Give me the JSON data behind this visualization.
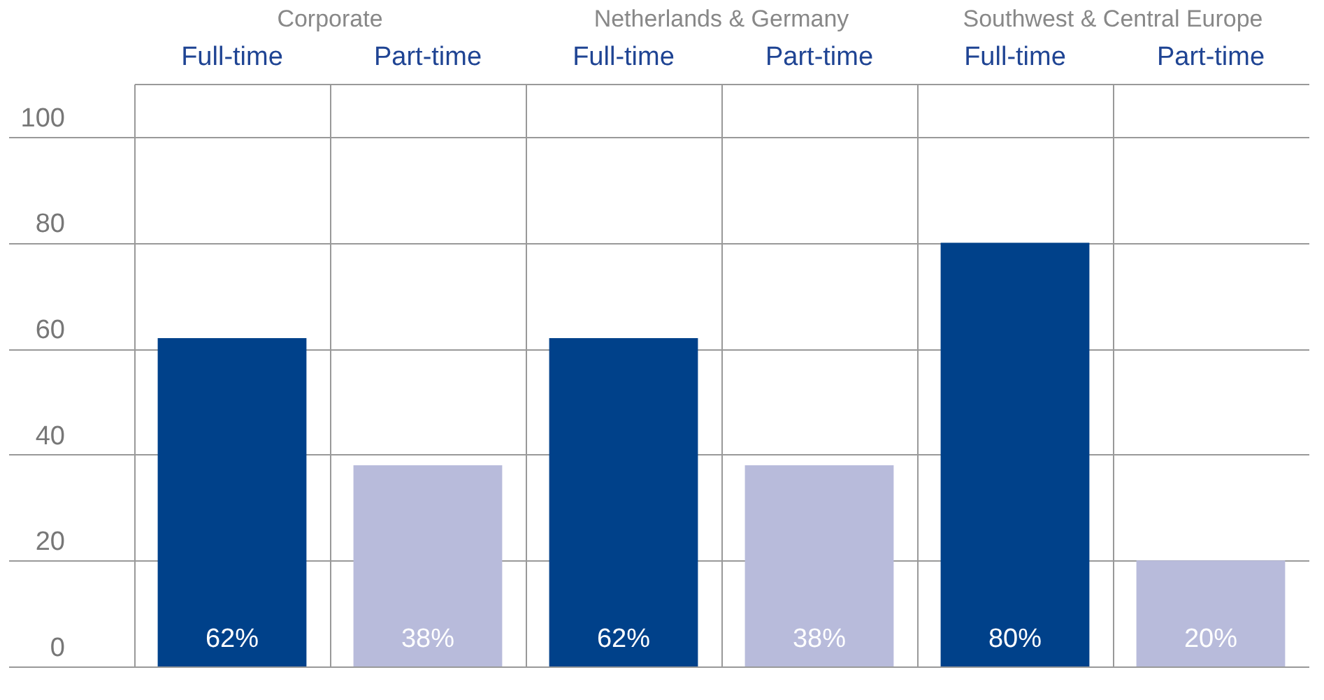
{
  "chart_data": [
    {
      "type": "bar",
      "title": "Corporate",
      "categories": [
        "Full-time",
        "Part-time"
      ],
      "values": [
        62,
        38
      ],
      "colors": [
        "#00418a",
        "#b8bbdb"
      ],
      "value_labels": [
        "62%",
        "38%"
      ],
      "ylim": [
        0,
        110
      ],
      "yticks": [
        0,
        20,
        40,
        60,
        80,
        100
      ],
      "grid": "y"
    },
    {
      "type": "bar",
      "title": "Netherlands & Germany",
      "categories": [
        "Full-time",
        "Part-time"
      ],
      "values": [
        62,
        38
      ],
      "colors": [
        "#00418a",
        "#b8bbdb"
      ],
      "value_labels": [
        "62%",
        "38%"
      ],
      "ylim": [
        0,
        110
      ],
      "yticks": [
        0,
        20,
        40,
        60,
        80,
        100
      ],
      "grid": "y",
      "tick_labels": "x"
    },
    {
      "type": "bar",
      "title": "Southwest & Central Europe",
      "categories": [
        "Full-time",
        "Part-time"
      ],
      "values": [
        80,
        20
      ],
      "colors": [
        "#00418a",
        "#b8bbdb"
      ],
      "value_labels": [
        "80%",
        "20%"
      ],
      "ylim": [
        0,
        110
      ],
      "yticks": [
        0,
        20,
        40,
        60,
        80,
        100
      ],
      "grid": "y",
      "tick_labels": "x"
    }
  ]
}
